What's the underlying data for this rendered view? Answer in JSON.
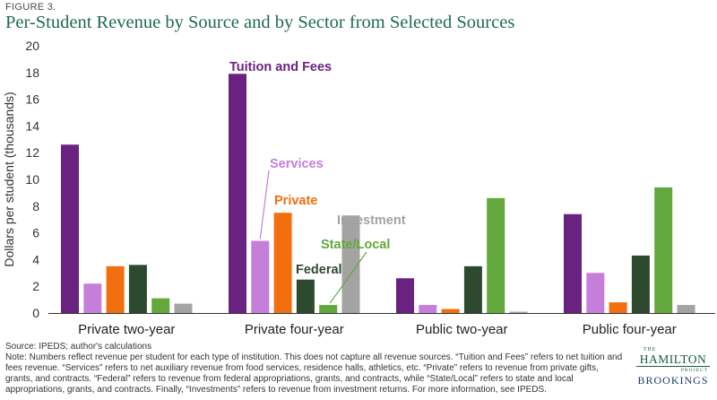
{
  "figure": {
    "label": "FIGURE 3.",
    "title": "Per-Student Revenue by Source and by Sector from Selected Sources"
  },
  "chart_data": {
    "type": "bar",
    "title": "Per-Student Revenue by Source and by Sector from Selected Sources",
    "xlabel": "",
    "ylabel": "Dollars per student  (thousands)",
    "ylim": [
      0,
      20
    ],
    "yticks": [
      "0",
      "2",
      "4",
      "6",
      "8",
      "10",
      "12",
      "14",
      "16",
      "18",
      "20"
    ],
    "grid": false,
    "legend": "inline labels",
    "categories": [
      "Private two-year",
      "Private four-year",
      "Public two-year",
      "Public four-year"
    ],
    "series": [
      {
        "name": "Tuition and Fees",
        "color": "#6a2280",
        "values": [
          12.6,
          17.9,
          2.6,
          7.4
        ]
      },
      {
        "name": "Services",
        "color": "#c57fdb",
        "values": [
          2.2,
          5.4,
          0.6,
          3.0
        ]
      },
      {
        "name": "Private",
        "color": "#f26f0f",
        "values": [
          3.5,
          7.5,
          0.3,
          0.8
        ]
      },
      {
        "name": "Federal",
        "color": "#2e4a2e",
        "values": [
          3.6,
          2.5,
          3.5,
          4.3
        ]
      },
      {
        "name": "State/Local",
        "color": "#62a83c",
        "values": [
          1.1,
          0.6,
          8.6,
          9.4
        ]
      },
      {
        "name": "Investment",
        "color": "#a3a3a3",
        "values": [
          0.7,
          7.3,
          0.1,
          0.6
        ]
      }
    ]
  },
  "footer": {
    "source": "Source: IPEDS; author's calculations",
    "note": "Note: Numbers reflect revenue per student for each type of institution. This does not capture all revenue sources. “Tuition and Fees” refers to net tuition and fees revenue. “Services” refers to net auxiliary revenue from food services, residence halls, athletics, etc. “Private” refers to revenue from private gifts, grants, and contracts. “Federal” refers to revenue from federal appropriations, grants, and contracts, while “State/Local” refers to state and local appropriations, grants, and contracts. Finally, “Investments” refers to revenue from investment returns. For more information, see IPEDS."
  },
  "logo": {
    "the": "THE",
    "hamilton": "HAMILTON",
    "project": "PROJECT",
    "brookings": "BROOKINGS"
  }
}
